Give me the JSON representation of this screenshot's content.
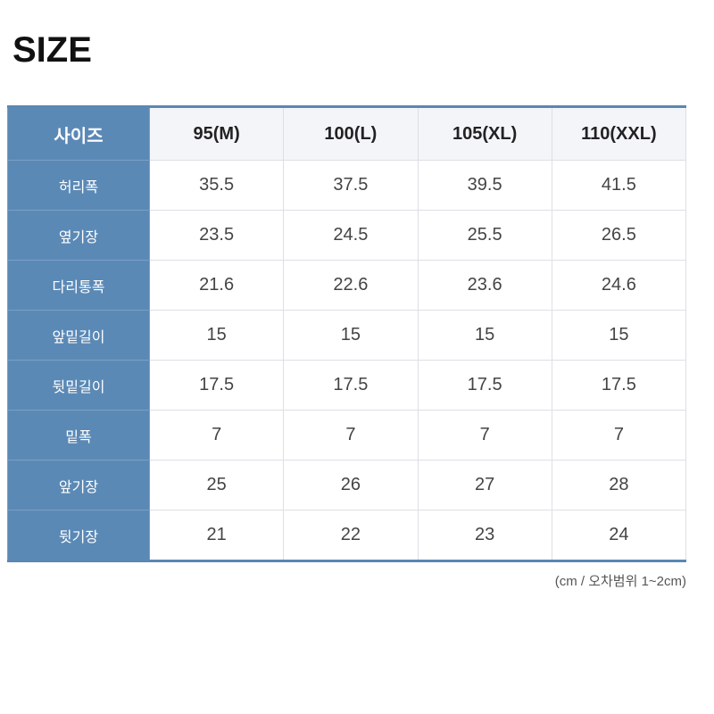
{
  "title": "SIZE",
  "table": {
    "header": [
      "사이즈",
      "95(M)",
      "100(L)",
      "105(XL)",
      "110(XXL)"
    ],
    "rows": [
      {
        "label": "허리폭",
        "values": [
          "35.5",
          "37.5",
          "39.5",
          "41.5"
        ]
      },
      {
        "label": "옆기장",
        "values": [
          "23.5",
          "24.5",
          "25.5",
          "26.5"
        ]
      },
      {
        "label": "다리통폭",
        "values": [
          "21.6",
          "22.6",
          "23.6",
          "24.6"
        ]
      },
      {
        "label": "앞밑길이",
        "values": [
          "15",
          "15",
          "15",
          "15"
        ]
      },
      {
        "label": "뒷밑길이",
        "values": [
          "17.5",
          "17.5",
          "17.5",
          "17.5"
        ]
      },
      {
        "label": "밑폭",
        "values": [
          "7",
          "7",
          "7",
          "7"
        ]
      },
      {
        "label": "앞기장",
        "values": [
          "25",
          "26",
          "27",
          "28"
        ]
      },
      {
        "label": "뒷기장",
        "values": [
          "21",
          "22",
          "23",
          "24"
        ]
      }
    ]
  },
  "note": "(cm / 오차범위 1~2cm)",
  "colors": {
    "accent": "#5b89b6",
    "header_bg": "#f3f5f9"
  }
}
